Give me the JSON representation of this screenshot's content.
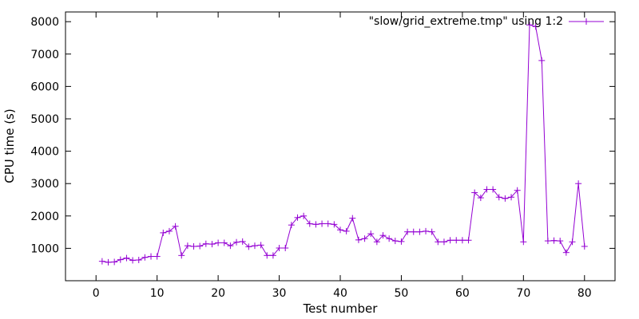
{
  "chart_data": {
    "type": "line",
    "title": "",
    "xlabel": "Test number",
    "ylabel": "CPU time (s)",
    "xlim": [
      -5,
      85
    ],
    "ylim": [
      0,
      8300
    ],
    "xticks": [
      0,
      10,
      20,
      30,
      40,
      50,
      60,
      70,
      80
    ],
    "yticks": [
      1000,
      2000,
      3000,
      4000,
      5000,
      6000,
      7000,
      8000
    ],
    "grid": false,
    "legend_position": "top-right",
    "series": [
      {
        "name": "\"slow/grid_extreme.tmp\" using 1:2",
        "color": "#9400D3",
        "marker": "plus",
        "x": [
          1,
          2,
          3,
          4,
          5,
          6,
          7,
          8,
          9,
          10,
          11,
          12,
          13,
          14,
          15,
          16,
          17,
          18,
          19,
          20,
          21,
          22,
          23,
          24,
          25,
          26,
          27,
          28,
          29,
          30,
          31,
          32,
          33,
          34,
          35,
          36,
          37,
          38,
          39,
          40,
          41,
          42,
          43,
          44,
          45,
          46,
          47,
          48,
          49,
          50,
          51,
          52,
          53,
          54,
          55,
          56,
          57,
          58,
          59,
          60,
          61,
          62,
          63,
          64,
          65,
          66,
          67,
          68,
          69,
          70,
          71,
          72,
          73,
          74,
          75,
          76,
          77,
          78,
          79,
          80
        ],
        "y": [
          600,
          570,
          580,
          650,
          700,
          630,
          640,
          720,
          750,
          750,
          1480,
          1530,
          1680,
          780,
          1080,
          1060,
          1070,
          1140,
          1130,
          1170,
          1170,
          1080,
          1190,
          1210,
          1050,
          1080,
          1100,
          780,
          780,
          1010,
          1010,
          1720,
          1950,
          2000,
          1760,
          1740,
          1760,
          1760,
          1740,
          1570,
          1530,
          1930,
          1260,
          1300,
          1450,
          1200,
          1400,
          1300,
          1230,
          1210,
          1510,
          1510,
          1510,
          1530,
          1510,
          1200,
          1200,
          1250,
          1250,
          1250,
          1250,
          2720,
          2560,
          2820,
          2820,
          2580,
          2540,
          2580,
          2790,
          1200,
          7900,
          7850,
          6800,
          1230,
          1240,
          1230,
          870,
          1200,
          3000,
          1060
        ]
      }
    ]
  }
}
